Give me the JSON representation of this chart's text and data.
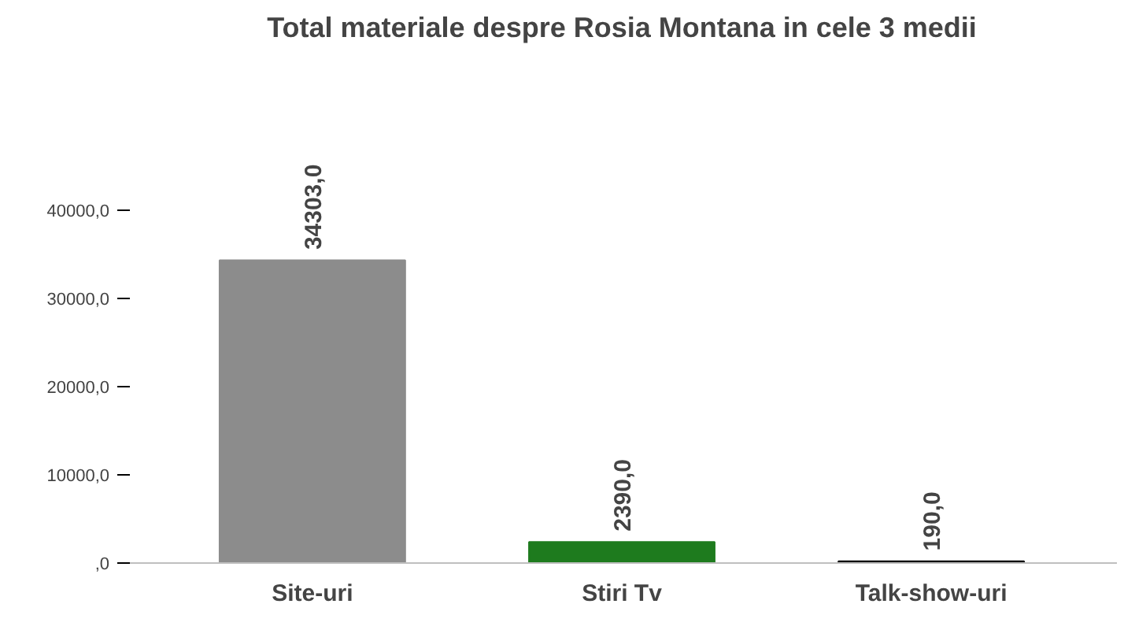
{
  "chart_data": {
    "type": "bar",
    "title": "Total materiale despre Rosia Montana in cele 3 medii",
    "categories": [
      "Site-uri",
      "Stiri Tv",
      "Talk-show-uri"
    ],
    "values": [
      34303,
      2390,
      190
    ],
    "colors": [
      "#8c8c8c",
      "#1e7b1e",
      "#000000"
    ],
    "value_labels": [
      "34303,0",
      "2390,0",
      "190,0"
    ],
    "ylim": [
      0,
      40000
    ],
    "yticks": [
      {
        "value": 0,
        "label": ",0"
      },
      {
        "value": 10000,
        "label": "10000,0"
      },
      {
        "value": 20000,
        "label": "20000,0"
      },
      {
        "value": 30000,
        "label": "30000,0"
      },
      {
        "value": 40000,
        "label": "40000,0"
      }
    ],
    "grid": false
  }
}
